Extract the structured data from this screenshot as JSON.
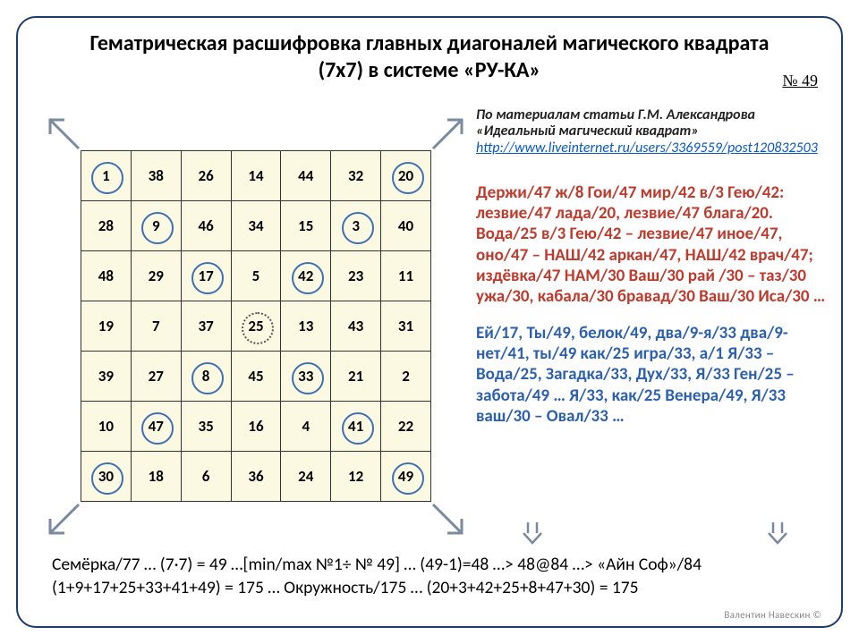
{
  "page_number": "№ 49",
  "title": "Гематрическая расшифровка главных диагоналей магического квадрата (7х7) в системе «РУ-КА»",
  "source": {
    "line1": "По материалам статьи Г.М. Александрова",
    "line2": "«Идеальный магический квадрат»",
    "url": "http://www.liveinternet.ru/users/3369559/post120832503"
  },
  "square": {
    "bg_color": "#fcf9e3",
    "border_color": "#333333",
    "circle_color": "#3f6fb5",
    "size": 7,
    "cells": [
      [
        1,
        38,
        26,
        14,
        44,
        32,
        20
      ],
      [
        28,
        9,
        46,
        34,
        15,
        3,
        40
      ],
      [
        48,
        29,
        17,
        5,
        42,
        23,
        11
      ],
      [
        19,
        7,
        37,
        25,
        13,
        43,
        31
      ],
      [
        39,
        27,
        8,
        45,
        33,
        21,
        2
      ],
      [
        10,
        47,
        35,
        16,
        4,
        41,
        22
      ],
      [
        30,
        18,
        6,
        36,
        24,
        12,
        49
      ]
    ],
    "circled_solid": [
      [
        0,
        0
      ],
      [
        0,
        6
      ],
      [
        1,
        1
      ],
      [
        1,
        5
      ],
      [
        2,
        2
      ],
      [
        2,
        4
      ],
      [
        4,
        2
      ],
      [
        4,
        4
      ],
      [
        5,
        1
      ],
      [
        5,
        5
      ],
      [
        6,
        0
      ],
      [
        6,
        6
      ]
    ],
    "circled_dashed": [
      [
        3,
        3
      ]
    ]
  },
  "text_red": "Держи/47 ж/8 Гои/47 мир/42 в/3 Гею/42: лезвие/47 лада/20, лезвие/47 блага/20. Вода/25 в/3 Гею/42 – лезвие/47 иное/47, оно/47 – НАШ/42 аркан/47, НАШ/42 врач/47; издёвка/47 НАМ/30 Ваш/30 рай /30 – таз/30 ужа/30, кабала/30 бравад/30 Ваш/30 Иса/30 …",
  "text_blue": "Ей/17, Ты/49, белок/49, два/9-я/33 два/9-нет/41, ты/49 как/25 игра/33, а/1 Я/33 – Вода/25, Загадка/33, Дух/33, Я/33 Ген/25 – забота/49 … Я/33, как/25 Венера/49, Я/33 ваш/30 – Овал/33 …",
  "bottom_line1": "Семёрка/77 … (7·7) = 49 …[min/max №1÷ № 49] … (49-1)=48 …> 48@84 …> «Айн Соф»/84",
  "bottom_line2": "(1+9+17+25+33+41+49) = 175 … Окружность/175 … (20+3+42+25+8+47+30) = 175",
  "credit": "Валентин Навескин ©",
  "colors": {
    "frame": "#1f3a6e",
    "red": "#c0392b",
    "blue": "#2b5fb0",
    "link": "#0a58ca",
    "arrow": "#7a8aa0"
  }
}
